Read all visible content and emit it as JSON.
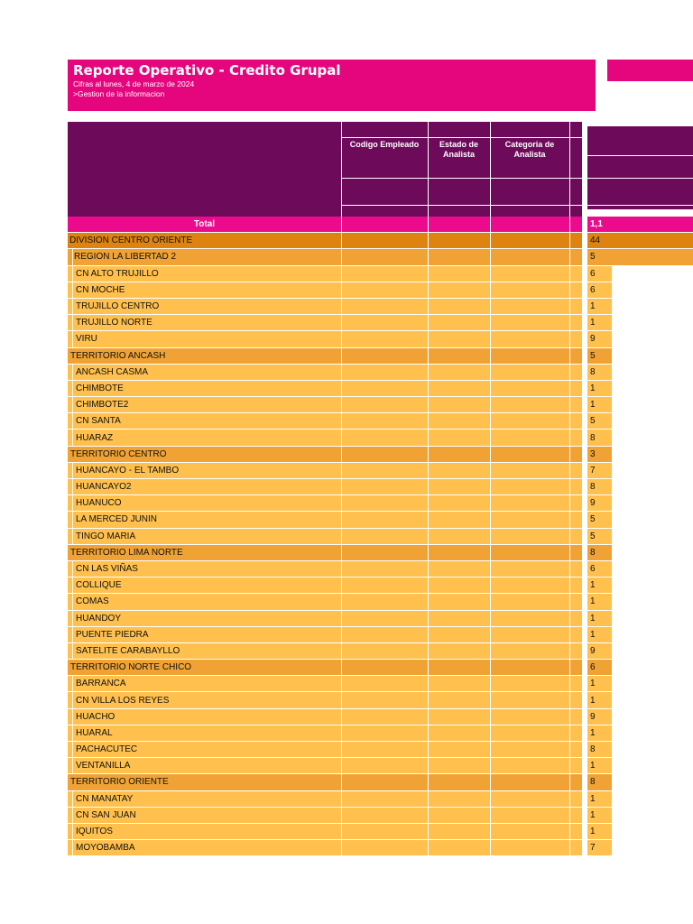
{
  "banner": {
    "title": "Reporte Operativo - Credito Grupal",
    "date_line": "Cifras al lunes, 4 de marzo de 2024",
    "subtitle": ">Gestion de la informacion"
  },
  "header": {
    "columns": [
      "Codigo Empleado",
      "Estado de Analista",
      "Categoria de Analista"
    ]
  },
  "table": {
    "total_label": "Total",
    "total_value": "1,1",
    "rows": [
      {
        "label": "DIVISION CENTRO ORIENTE",
        "level": "division",
        "value": "44",
        "right_bar": true
      },
      {
        "label": "REGION LA LIBERTAD 2",
        "level": "region",
        "value": "5",
        "right_bar": true
      },
      {
        "label": "CN ALTO TRUJILLO",
        "level": "branch",
        "value": "6"
      },
      {
        "label": "CN MOCHE",
        "level": "branch",
        "value": "6"
      },
      {
        "label": "TRUJILLO CENTRO",
        "level": "branch",
        "value": "1"
      },
      {
        "label": "TRUJILLO NORTE",
        "level": "branch",
        "value": "1"
      },
      {
        "label": "VIRU",
        "level": "branch",
        "value": "9"
      },
      {
        "label": "TERRITORIO ANCASH",
        "level": "territory",
        "value": "5"
      },
      {
        "label": "ANCASH CASMA",
        "level": "branch",
        "value": "8"
      },
      {
        "label": "CHIMBOTE",
        "level": "branch",
        "value": "1"
      },
      {
        "label": "CHIMBOTE2",
        "level": "branch",
        "value": "1"
      },
      {
        "label": "CN SANTA",
        "level": "branch",
        "value": "5"
      },
      {
        "label": "HUARAZ",
        "level": "branch",
        "value": "8"
      },
      {
        "label": "TERRITORIO CENTRO",
        "level": "territory",
        "value": "3"
      },
      {
        "label": "HUANCAYO - EL TAMBO",
        "level": "branch",
        "value": "7"
      },
      {
        "label": "HUANCAYO2",
        "level": "branch",
        "value": "8"
      },
      {
        "label": "HUANUCO",
        "level": "branch",
        "value": "9"
      },
      {
        "label": "LA MERCED JUNIN",
        "level": "branch",
        "value": "5"
      },
      {
        "label": "TINGO MARIA",
        "level": "branch",
        "value": "5"
      },
      {
        "label": "TERRITORIO LIMA NORTE",
        "level": "territory",
        "value": "8"
      },
      {
        "label": "CN LAS VIÑAS",
        "level": "branch",
        "value": "6"
      },
      {
        "label": "COLLIQUE",
        "level": "branch",
        "value": "1"
      },
      {
        "label": "COMAS",
        "level": "branch",
        "value": "1"
      },
      {
        "label": "HUANDOY",
        "level": "branch",
        "value": "1"
      },
      {
        "label": "PUENTE PIEDRA",
        "level": "branch",
        "value": "1"
      },
      {
        "label": "SATELITE CARABAYLLO",
        "level": "branch",
        "value": "9"
      },
      {
        "label": "TERRITORIO NORTE CHICO",
        "level": "territory",
        "value": "6"
      },
      {
        "label": "BARRANCA",
        "level": "branch",
        "value": "1"
      },
      {
        "label": "CN VILLA LOS REYES",
        "level": "branch",
        "value": "1"
      },
      {
        "label": "HUACHO",
        "level": "branch",
        "value": "9"
      },
      {
        "label": "HUARAL",
        "level": "branch",
        "value": "1"
      },
      {
        "label": "PACHACUTEC",
        "level": "branch",
        "value": "8"
      },
      {
        "label": "VENTANILLA",
        "level": "branch",
        "value": "1"
      },
      {
        "label": "TERRITORIO ORIENTE",
        "level": "territory",
        "value": "8"
      },
      {
        "label": "CN MANATAY",
        "level": "branch",
        "value": "1"
      },
      {
        "label": "CN SAN JUAN",
        "level": "branch",
        "value": "1"
      },
      {
        "label": "IQUITOS",
        "level": "branch",
        "value": "1"
      },
      {
        "label": "MOYOBAMBA",
        "level": "branch",
        "value": "7"
      }
    ]
  },
  "colors": {
    "banner_pink": "#E5067E",
    "total_pink": "#EC0B8C",
    "header_purple": "#6E0A5A",
    "division_orange": "#DE830F",
    "region_orange": "#F0A334",
    "territory_orange": "#F0A334",
    "branch_orange": "#FFC04E"
  }
}
